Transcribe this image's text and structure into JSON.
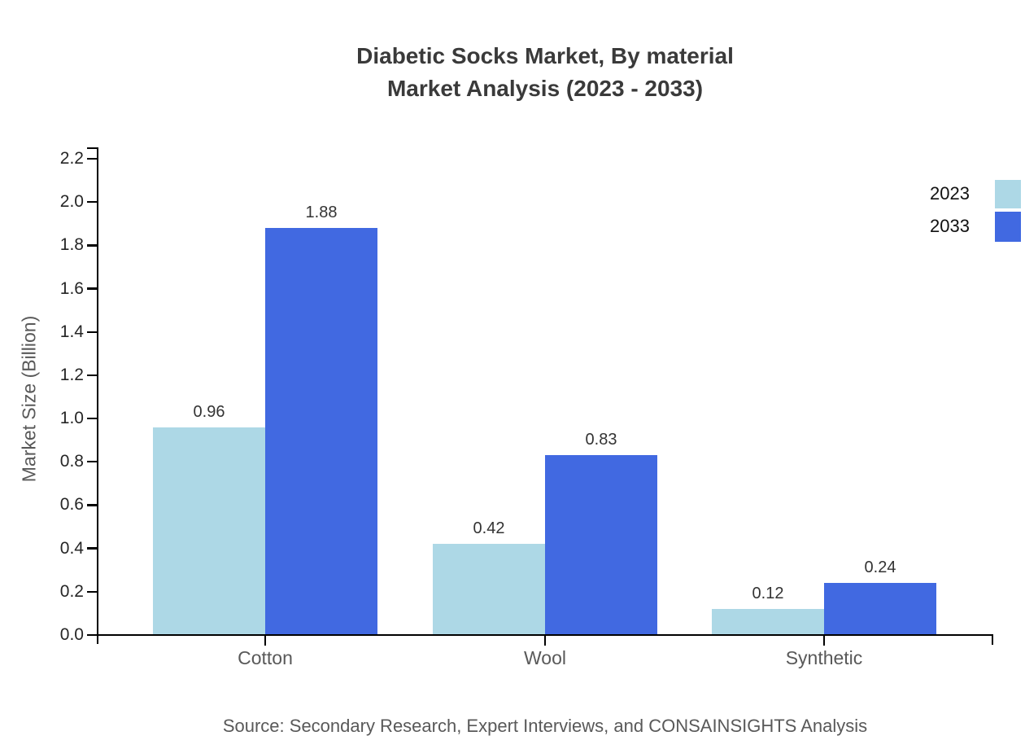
{
  "title": {
    "line1": "Diabetic Socks Market, By material",
    "line2": "Market Analysis (2023 - 2033)"
  },
  "source": "Source: Secondary Research, Expert Interviews, and CONSAINSIGHTS Analysis",
  "chart_data": {
    "type": "bar",
    "title": "Diabetic Socks Market, By material Market Analysis (2023 - 2033)",
    "categories": [
      "Cotton",
      "Wool",
      "Synthetic"
    ],
    "series": [
      {
        "name": "2023",
        "color": "#ADD8E6",
        "values": [
          0.96,
          0.42,
          0.12
        ],
        "labels": [
          "0.96",
          "0.42",
          "0.12"
        ]
      },
      {
        "name": "2033",
        "color": "#4169E1",
        "values": [
          1.88,
          0.83,
          0.24
        ],
        "labels": [
          "1.88",
          "0.83",
          "0.24"
        ]
      }
    ],
    "xlabel": "",
    "ylabel": "Market Size (Billion)",
    "ylim": [
      0.0,
      2.2
    ],
    "ytick_step": 0.2,
    "yticks": [
      "0.0",
      "0.2",
      "0.4",
      "0.6",
      "0.8",
      "1.0",
      "1.2",
      "1.4",
      "1.6",
      "1.8",
      "2.0",
      "2.2"
    ],
    "grid": false,
    "legend_position": "right",
    "axis_color": "#000000",
    "text_colors": {
      "title": "#3a3a3a",
      "ytick": "#262626",
      "category": "#595959",
      "value_label": "#333333",
      "source": "#595959"
    }
  }
}
